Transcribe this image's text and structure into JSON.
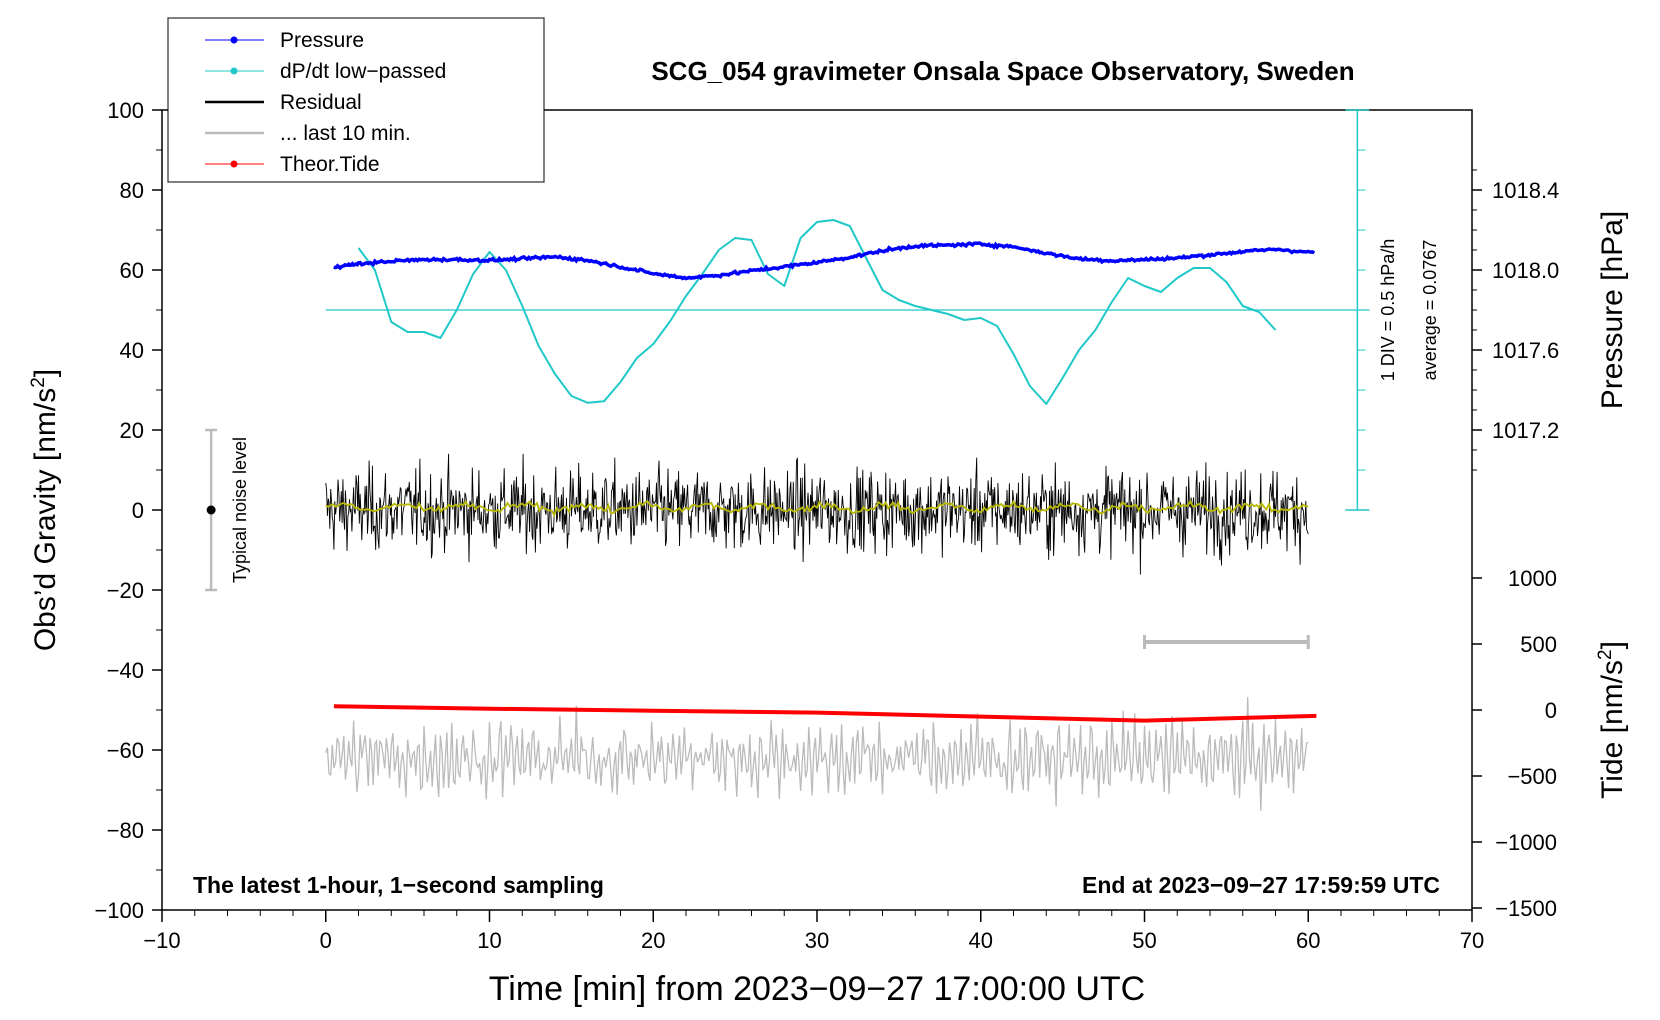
{
  "chart_data": {
    "type": "line",
    "title": "SCG_054 gravimeter Onsala Space Observatory, Sweden",
    "xlabel": "Time [min] from 2023−09−27 17:00:00 UTC",
    "ylabel_left": "Obs’d Gravity [nm/s",
    "ylabel_left_sup": "2",
    "ylabel_left_end": "]",
    "ylabel_right_pressure": "Pressure [hPa]",
    "ylabel_right_tide": "Tide [nm/s",
    "ylabel_right_tide_sup": "2",
    "ylabel_right_tide_end": "]",
    "xlim": [
      -10,
      70
    ],
    "ylim": [
      -100,
      100
    ],
    "x_ticks": [
      "−10",
      "0",
      "10",
      "20",
      "30",
      "40",
      "50",
      "60",
      "70"
    ],
    "y_ticks": [
      "100",
      "80",
      "60",
      "40",
      "20",
      "0",
      "−20",
      "−40",
      "−60",
      "−80",
      "−100"
    ],
    "pressure_ticks": [
      "1018.4",
      "1018.0",
      "1017.6",
      "1017.2"
    ],
    "tide_ticks": [
      "1000",
      "500",
      "0",
      "−500",
      "−1000",
      "−1500"
    ],
    "bottom_left_note": "The latest 1-hour, 1−second sampling",
    "bottom_right_note": "End at 2023−09−27 17:59:59 UTC",
    "noise_label": "Typical noise level",
    "dpdt_scale_label": "1 DIV = 0.5 hPa/h",
    "dpdt_average_label": "average = 0.0767",
    "legend": [
      {
        "label": "Pressure",
        "color": "#0000ff"
      },
      {
        "label": "dP/dt low−passed",
        "color": "#20c8c8"
      },
      {
        "label": "Residual",
        "color": "#000000"
      },
      {
        "label": "... last 10 min.",
        "color": "#bbbbbb"
      },
      {
        "label": "Theor.Tide",
        "color": "#ff0000"
      }
    ],
    "series": [
      {
        "name": "Pressure",
        "color": "#0000ff",
        "y_units": "nm/s2 plot scale",
        "x": [
          0.5,
          2,
          4,
          6,
          8,
          10,
          12,
          14,
          16,
          18,
          20,
          22,
          24,
          26,
          28,
          30,
          32,
          34,
          36,
          38,
          40,
          42,
          44,
          46,
          48,
          50,
          52,
          54,
          56,
          58,
          60.5
        ],
        "y": [
          60.8,
          61.5,
          62.2,
          62.6,
          62.6,
          62.4,
          62.8,
          63.3,
          62.4,
          60.8,
          59.1,
          58.0,
          58.7,
          59.8,
          60.8,
          61.9,
          63.2,
          64.8,
          66.0,
          66.2,
          66.5,
          65.8,
          64.2,
          62.8,
          62.3,
          62.6,
          63.0,
          63.8,
          64.6,
          65.2,
          64.3
        ]
      },
      {
        "name": "dP/dt low−passed",
        "color": "#20c8c8",
        "y_units": "nm/s2 plot scale",
        "x": [
          2,
          3,
          4,
          5,
          6,
          7,
          8,
          9,
          10,
          11,
          12,
          13,
          14,
          15,
          16,
          17,
          18,
          19,
          20,
          21,
          22,
          23,
          24,
          25,
          26,
          27,
          28,
          29,
          30,
          31,
          32,
          33,
          34,
          35,
          36,
          37,
          38,
          39,
          40,
          41,
          42,
          43,
          44,
          45,
          46,
          47,
          48,
          49,
          50,
          51,
          52,
          53,
          54,
          55,
          56,
          57,
          58
        ],
        "y": [
          65.5,
          60,
          47,
          44.5,
          44.5,
          43,
          50,
          59,
          64.5,
          60,
          51,
          41,
          34,
          28.5,
          26.8,
          27.2,
          32,
          38,
          41.5,
          47,
          53.5,
          59,
          65,
          68,
          67.5,
          59,
          56,
          68,
          72,
          72.5,
          71,
          63,
          55,
          52.5,
          51,
          50,
          49,
          47.5,
          48,
          46,
          39,
          31,
          26.5,
          33,
          40,
          45,
          52,
          58,
          56,
          54.5,
          58,
          60.5,
          60.5,
          57,
          51,
          49.5,
          45
        ]
      },
      {
        "name": "Residual",
        "color": "#000000",
        "y_units": "nm/s2",
        "x_range": [
          0,
          60
        ],
        "amplitude": [
          -24,
          23
        ]
      },
      {
        "name": "Residual (smoothed)",
        "color": "#b8b800",
        "y_units": "nm/s2",
        "x_range": [
          0,
          60
        ],
        "amplitude": [
          -2,
          3
        ]
      },
      {
        "name": "... last 10 min.",
        "color": "#bbbbbb",
        "y_units": "nm/s2 plot scale",
        "x_range": [
          0,
          60
        ],
        "center": -62,
        "amplitude": [
          -82,
          -41
        ]
      },
      {
        "name": "Theor.Tide",
        "color": "#ff0000",
        "y_units": "nm/s2 (tide axis)",
        "x": [
          0.5,
          10,
          20,
          30,
          40,
          50,
          60.5
        ],
        "y": [
          28,
          10,
          -5,
          -20,
          -50,
          -80,
          -45
        ]
      }
    ],
    "noise_bar": {
      "x": -7,
      "y_center": 0,
      "y_min": -20,
      "y_max": 20
    },
    "last10_marker": {
      "x_start": 50,
      "x_end": 60,
      "y": -33
    },
    "dpdt_scale": {
      "x": 63,
      "y_base": 0,
      "y_top": 100,
      "div_value_hPa_per_h": 0.5,
      "average_level": 50
    }
  }
}
